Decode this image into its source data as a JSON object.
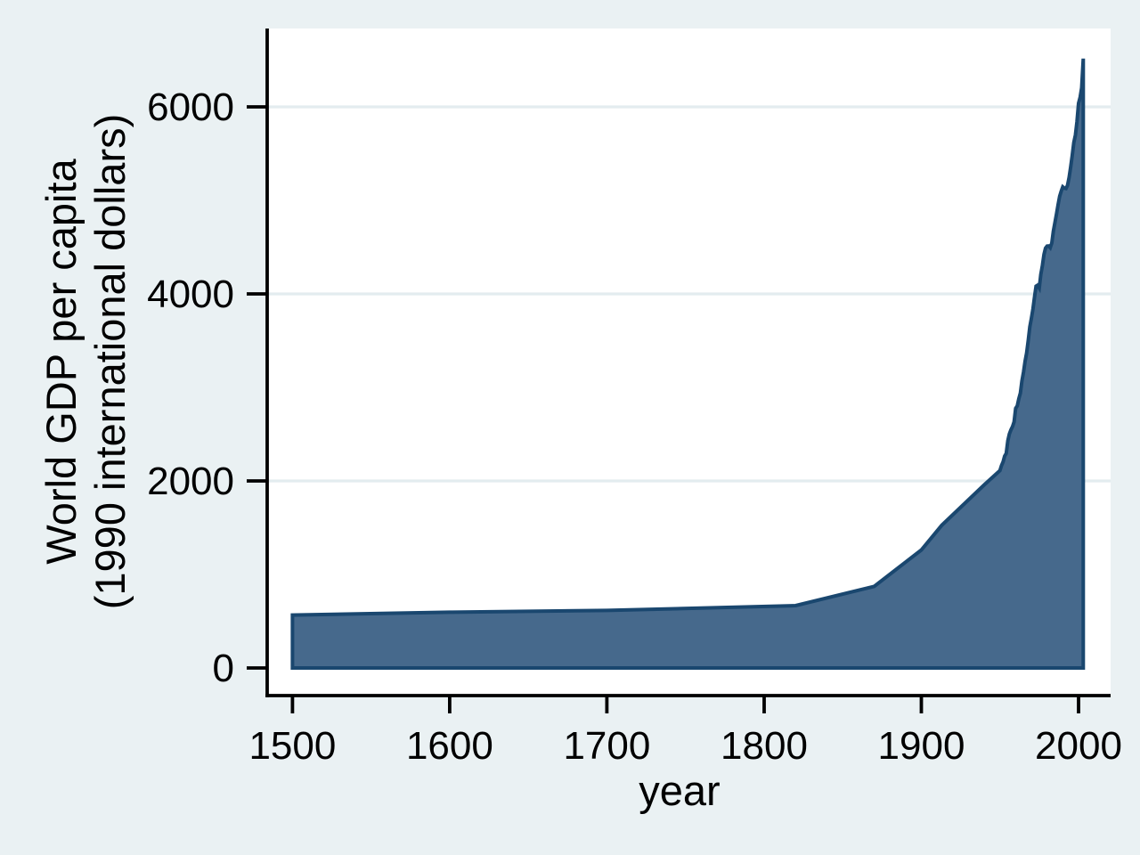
{
  "figure": {
    "background_color": "#eaf1f3",
    "plot_background_color": "#ffffff",
    "gridline_color": "#e3ecef",
    "axis_color": "#000000",
    "text_color": "#000000"
  },
  "chart_data": {
    "type": "area",
    "title": "",
    "xlabel": "year",
    "ylabel_line1": "World GDP per capita",
    "ylabel_line2": "(1990 international dollars)",
    "x_ticks": [
      1500,
      1600,
      1700,
      1800,
      1900,
      2000
    ],
    "y_ticks": [
      0,
      2000,
      4000,
      6000
    ],
    "xlim": [
      1483.9,
      2020.4
    ],
    "ylim": [
      -295,
      6838
    ],
    "grid": "horizontal-at-labeled-yticks-above-zero",
    "legend": "none",
    "series": [
      {
        "name": "World GDP per capita (1990 international dollars)",
        "fill_color": "#46698c",
        "line_color": "#1a476f",
        "baseline": 0,
        "points": [
          [
            1500,
            566
          ],
          [
            1600,
            596
          ],
          [
            1700,
            615
          ],
          [
            1820,
            667
          ],
          [
            1870,
            873
          ],
          [
            1900,
            1262
          ],
          [
            1913,
            1526
          ],
          [
            1940,
            1958
          ],
          [
            1950,
            2111
          ],
          [
            1951,
            2165
          ],
          [
            1952,
            2205
          ],
          [
            1953,
            2266
          ],
          [
            1954,
            2294
          ],
          [
            1955,
            2430
          ],
          [
            1956,
            2502
          ],
          [
            1957,
            2547
          ],
          [
            1958,
            2582
          ],
          [
            1959,
            2631
          ],
          [
            1960,
            2777
          ],
          [
            1961,
            2803
          ],
          [
            1962,
            2877
          ],
          [
            1963,
            2940
          ],
          [
            1964,
            3068
          ],
          [
            1965,
            3164
          ],
          [
            1966,
            3281
          ],
          [
            1967,
            3368
          ],
          [
            1968,
            3501
          ],
          [
            1969,
            3649
          ],
          [
            1970,
            3736
          ],
          [
            1971,
            3839
          ],
          [
            1972,
            3970
          ],
          [
            1973,
            4083
          ],
          [
            1974,
            4093
          ],
          [
            1975,
            4064
          ],
          [
            1976,
            4207
          ],
          [
            1977,
            4303
          ],
          [
            1978,
            4423
          ],
          [
            1979,
            4490
          ],
          [
            1980,
            4511
          ],
          [
            1981,
            4512
          ],
          [
            1982,
            4494
          ],
          [
            1983,
            4546
          ],
          [
            1984,
            4670
          ],
          [
            1985,
            4764
          ],
          [
            1986,
            4857
          ],
          [
            1987,
            4953
          ],
          [
            1988,
            5045
          ],
          [
            1989,
            5100
          ],
          [
            1990,
            5145
          ],
          [
            1991,
            5130
          ],
          [
            1992,
            5128
          ],
          [
            1993,
            5160
          ],
          [
            1994,
            5245
          ],
          [
            1995,
            5360
          ],
          [
            1996,
            5480
          ],
          [
            1997,
            5620
          ],
          [
            1998,
            5700
          ],
          [
            1999,
            5840
          ],
          [
            2000,
            6038
          ],
          [
            2001,
            6104
          ],
          [
            2002,
            6204
          ],
          [
            2003,
            6516
          ]
        ]
      }
    ]
  }
}
